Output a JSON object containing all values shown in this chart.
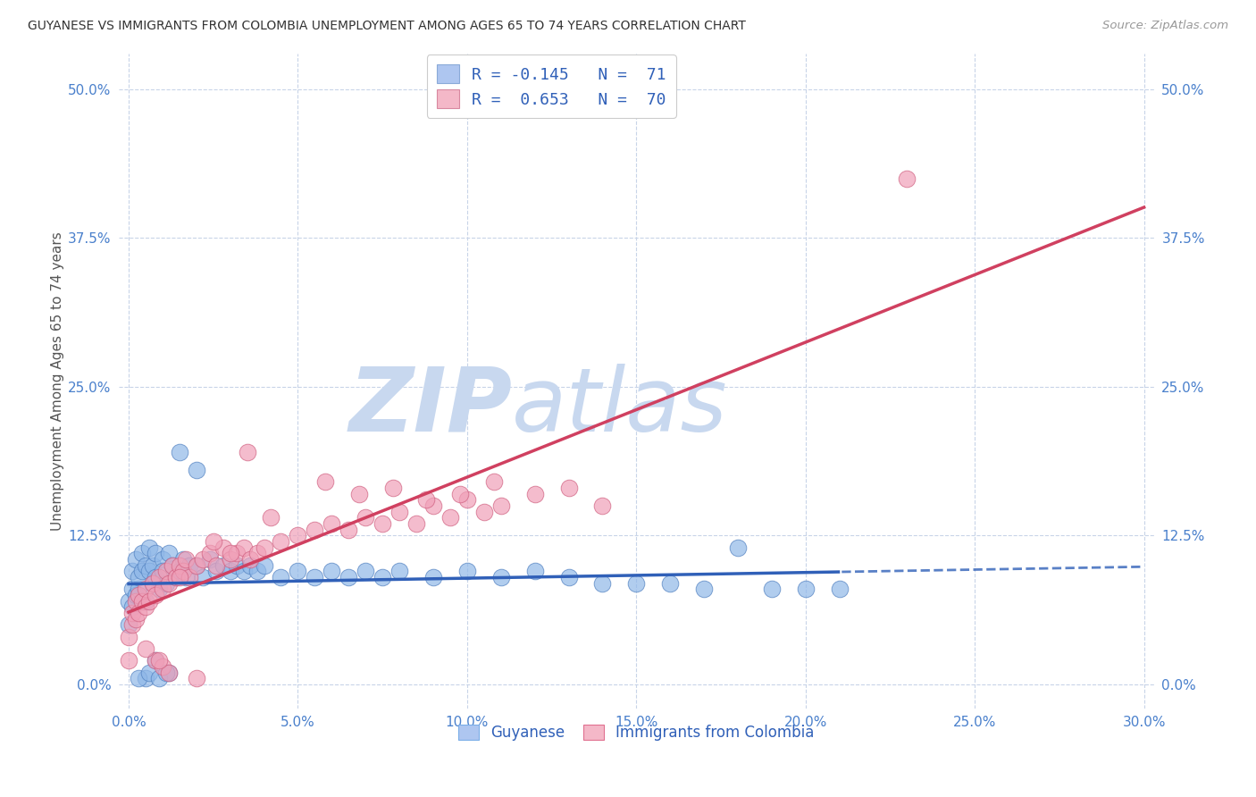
{
  "title": "GUYANESE VS IMMIGRANTS FROM COLOMBIA UNEMPLOYMENT AMONG AGES 65 TO 74 YEARS CORRELATION CHART",
  "source": "Source: ZipAtlas.com",
  "ylabel": "Unemployment Among Ages 65 to 74 years",
  "xlabel_ticks": [
    "0.0%",
    "5.0%",
    "10.0%",
    "15.0%",
    "20.0%",
    "25.0%",
    "30.0%"
  ],
  "xlabel_vals": [
    0.0,
    5.0,
    10.0,
    15.0,
    20.0,
    25.0,
    30.0
  ],
  "ytick_labels": [
    "0.0%",
    "12.5%",
    "25.0%",
    "37.5%",
    "50.0%"
  ],
  "ytick_vals": [
    0.0,
    12.5,
    25.0,
    37.5,
    50.0
  ],
  "xlim": [
    -0.3,
    30.3
  ],
  "ylim": [
    -2.0,
    53.0
  ],
  "legend_entries": [
    {
      "label": "R = -0.145   N =  71",
      "color": "#aec6f0"
    },
    {
      "label": "R =  0.653   N =  70",
      "color": "#f4b8c8"
    }
  ],
  "guyanese_x": [
    0.0,
    0.0,
    0.1,
    0.1,
    0.1,
    0.2,
    0.2,
    0.3,
    0.3,
    0.4,
    0.4,
    0.5,
    0.5,
    0.6,
    0.6,
    0.7,
    0.7,
    0.8,
    0.8,
    0.9,
    1.0,
    1.0,
    1.1,
    1.2,
    1.3,
    1.4,
    1.5,
    1.6,
    1.7,
    1.8,
    2.0,
    2.2,
    2.4,
    2.6,
    2.8,
    3.0,
    3.2,
    3.4,
    3.6,
    3.8,
    4.0,
    4.5,
    5.0,
    5.5,
    6.0,
    6.5,
    7.0,
    7.5,
    8.0,
    9.0,
    10.0,
    11.0,
    12.0,
    13.0,
    14.0,
    15.0,
    16.0,
    17.0,
    18.0,
    19.0,
    20.0,
    21.0,
    1.5,
    2.0,
    0.5,
    0.8,
    1.2,
    0.3,
    0.6,
    0.9,
    1.1
  ],
  "guyanese_y": [
    5.0,
    7.0,
    6.5,
    8.0,
    9.5,
    7.5,
    10.5,
    8.0,
    9.0,
    9.5,
    11.0,
    7.0,
    10.0,
    9.5,
    11.5,
    8.5,
    10.0,
    9.0,
    11.0,
    8.0,
    10.5,
    9.5,
    8.5,
    11.0,
    10.0,
    9.0,
    9.5,
    10.5,
    9.0,
    10.0,
    10.0,
    9.0,
    10.5,
    9.5,
    10.0,
    9.5,
    10.0,
    9.5,
    10.0,
    9.5,
    10.0,
    9.0,
    9.5,
    9.0,
    9.5,
    9.0,
    9.5,
    9.0,
    9.5,
    9.0,
    9.5,
    9.0,
    9.5,
    9.0,
    8.5,
    8.5,
    8.5,
    8.0,
    11.5,
    8.0,
    8.0,
    8.0,
    19.5,
    18.0,
    0.5,
    2.0,
    1.0,
    0.5,
    1.0,
    0.5,
    1.0
  ],
  "colombia_x": [
    0.0,
    0.0,
    0.1,
    0.1,
    0.2,
    0.2,
    0.3,
    0.3,
    0.4,
    0.5,
    0.5,
    0.6,
    0.7,
    0.8,
    0.9,
    1.0,
    1.1,
    1.2,
    1.3,
    1.4,
    1.5,
    1.6,
    1.7,
    1.8,
    2.0,
    2.2,
    2.4,
    2.6,
    2.8,
    3.0,
    3.2,
    3.4,
    3.6,
    3.8,
    4.0,
    4.5,
    5.0,
    5.5,
    6.0,
    6.5,
    7.0,
    7.5,
    8.0,
    8.5,
    9.0,
    9.5,
    10.0,
    10.5,
    11.0,
    12.0,
    13.0,
    14.0,
    3.5,
    4.2,
    5.8,
    6.8,
    7.8,
    8.8,
    9.8,
    10.8,
    2.5,
    3.0,
    1.5,
    0.8,
    2.0,
    1.0,
    1.2,
    0.5,
    0.9,
    23.0
  ],
  "colombia_y": [
    2.0,
    4.0,
    5.0,
    6.0,
    5.5,
    7.0,
    6.0,
    7.5,
    7.0,
    6.5,
    8.0,
    7.0,
    8.5,
    7.5,
    9.0,
    8.0,
    9.5,
    8.5,
    10.0,
    9.0,
    10.0,
    9.5,
    10.5,
    9.0,
    10.0,
    10.5,
    11.0,
    10.0,
    11.5,
    10.5,
    11.0,
    11.5,
    10.5,
    11.0,
    11.5,
    12.0,
    12.5,
    13.0,
    13.5,
    13.0,
    14.0,
    13.5,
    14.5,
    13.5,
    15.0,
    14.0,
    15.5,
    14.5,
    15.0,
    16.0,
    16.5,
    15.0,
    19.5,
    14.0,
    17.0,
    16.0,
    16.5,
    15.5,
    16.0,
    17.0,
    12.0,
    11.0,
    9.0,
    2.0,
    0.5,
    1.5,
    1.0,
    3.0,
    2.0,
    42.5
  ],
  "watermark_zip": "ZIP",
  "watermark_atlas": "atlas",
  "watermark_color": "#c8d8ef",
  "bg_color": "#ffffff",
  "grid_color": "#c8d4e8",
  "tick_color": "#4a80cc",
  "line_blue": "#3060b8",
  "line_pink": "#d04060",
  "dot_blue": "#90b8e8",
  "dot_blue_edge": "#5080c0",
  "dot_pink": "#f0a0b8",
  "dot_pink_edge": "#d06080"
}
